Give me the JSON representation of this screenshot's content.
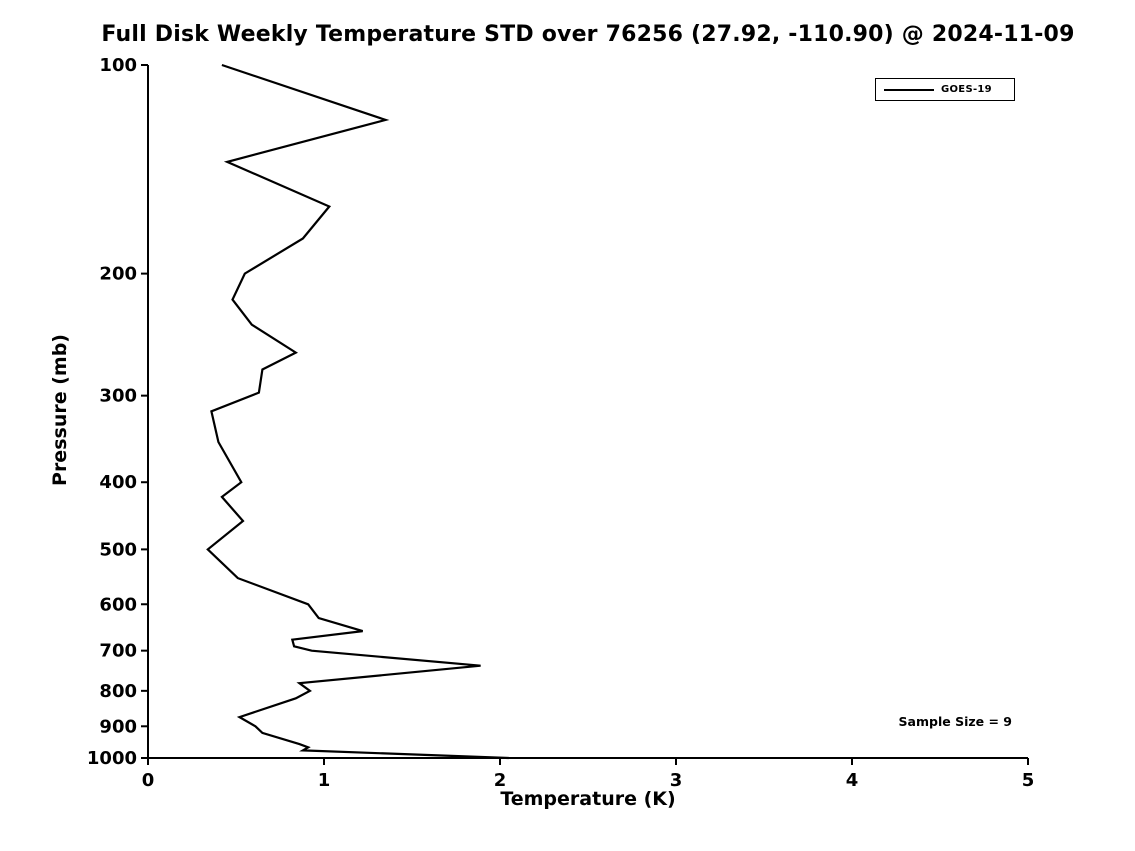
{
  "chart": {
    "title": "Full Disk Weekly Temperature STD over 76256 (27.92, -110.90) @ 2024-11-09",
    "xlabel": "Temperature (K)",
    "ylabel": "Pressure (mb)",
    "legend": {
      "label": "GOES-19",
      "line_color": "#000000"
    },
    "annotation": "Sample Size = 9"
  },
  "chart_data": {
    "type": "line",
    "title": "Full Disk Weekly Temperature STD over 76256 (27.92, -110.90) @ 2024-11-09",
    "xlabel": "Temperature (K)",
    "ylabel": "Pressure (mb)",
    "xlim": [
      0,
      5
    ],
    "ylim": [
      1000,
      100
    ],
    "yscale": "log",
    "xticks": [
      0,
      1,
      2,
      3,
      4,
      5
    ],
    "yticks": [
      100,
      200,
      300,
      400,
      500,
      600,
      700,
      800,
      900,
      1000
    ],
    "grid": false,
    "legend_position": "top-right",
    "annotation": "Sample Size = 9",
    "sample_size": 9,
    "series": [
      {
        "name": "GOES-19",
        "color": "#000000",
        "pressure_mb": [
          100,
          120,
          138,
          160,
          178,
          200,
          218,
          237,
          260,
          275,
          297,
          316,
          350,
          400,
          420,
          455,
          500,
          550,
          600,
          628,
          656,
          675,
          690,
          700,
          736,
          780,
          800,
          820,
          873,
          900,
          920,
          955,
          965,
          975,
          1000
        ],
        "temperature_std_K": [
          0.42,
          1.35,
          0.45,
          1.03,
          0.88,
          0.55,
          0.48,
          0.59,
          0.84,
          0.65,
          0.63,
          0.36,
          0.4,
          0.53,
          0.42,
          0.54,
          0.34,
          0.51,
          0.91,
          0.97,
          1.22,
          0.82,
          0.83,
          0.93,
          1.89,
          0.86,
          0.92,
          0.84,
          0.52,
          0.61,
          0.65,
          0.86,
          0.91,
          0.88,
          2.05
        ]
      }
    ]
  }
}
